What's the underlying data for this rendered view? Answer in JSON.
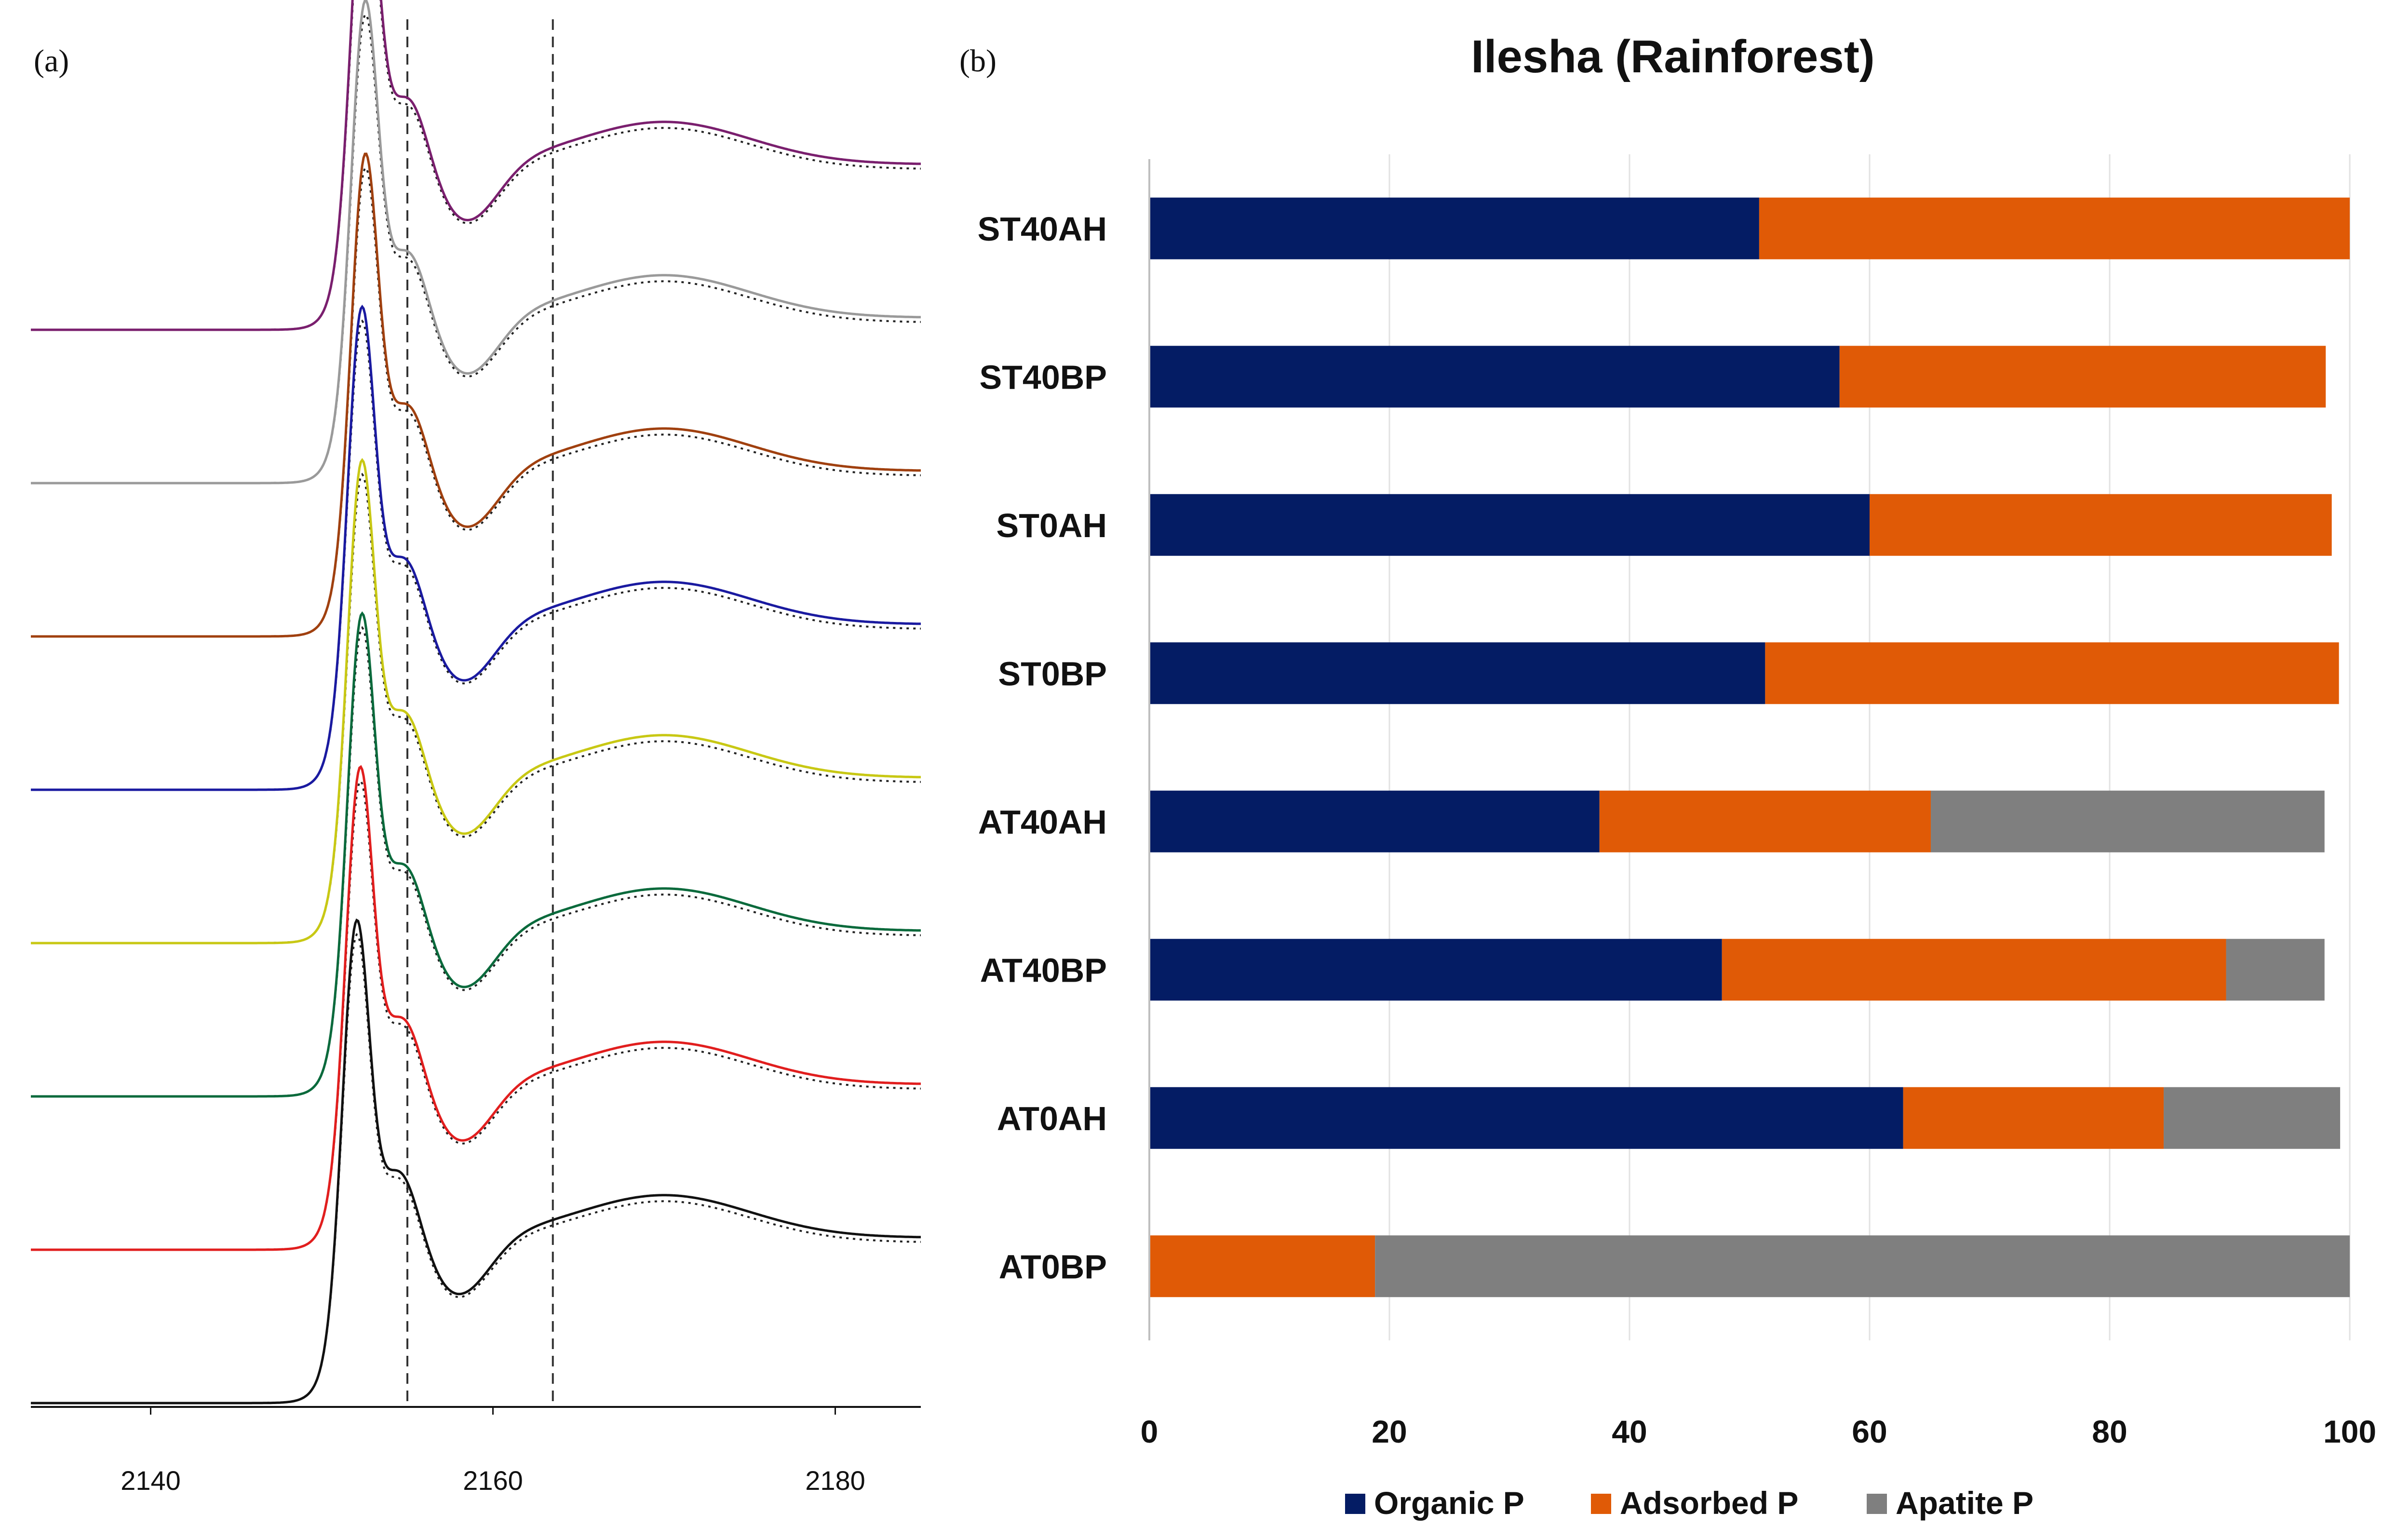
{
  "chart_data": [
    {
      "panel": "a",
      "type": "line",
      "panel_label": "(a)",
      "x_ticks": [
        "2140",
        "2160",
        "2180"
      ],
      "xlim": [
        2133,
        2185
      ],
      "reference_lines_x": [
        2155,
        2163.5
      ],
      "fit_style": "dotted",
      "series": [
        {
          "color": "#7a1f6e",
          "peak_x": 2152.5,
          "post_edge": 0.78
        },
        {
          "color": "#9a9a9a",
          "peak_x": 2152.5,
          "post_edge": 0.78
        },
        {
          "color": "#a0400f",
          "peak_x": 2152.5,
          "post_edge": 0.78
        },
        {
          "color": "#1a1aa0",
          "peak_x": 2152.3,
          "post_edge": 0.78
        },
        {
          "color": "#c8c814",
          "peak_x": 2152.3,
          "post_edge": 0.78
        },
        {
          "color": "#0a6a3c",
          "peak_x": 2152.3,
          "post_edge": 0.78
        },
        {
          "color": "#e11e1e",
          "peak_x": 2152.2,
          "post_edge": 0.78
        },
        {
          "color": "#111111",
          "peak_x": 2152.0,
          "post_edge": 0.78
        }
      ]
    },
    {
      "panel": "b",
      "type": "bar",
      "orientation": "horizontal",
      "stacked": true,
      "panel_label": "(b)",
      "title": "Ilesha (Rainforest)",
      "categories": [
        "ST40AH",
        "ST40BP",
        "ST0AH",
        "ST0BP",
        "AT40AH",
        "AT40BP",
        "AT0AH",
        "AT0BP"
      ],
      "series": [
        {
          "name": "Organic P",
          "color": "#041c64",
          "values": [
            50.8,
            57.5,
            60.0,
            51.3,
            37.5,
            47.7,
            62.8,
            0
          ]
        },
        {
          "name": "Adsorbed P",
          "color": "#e05a06",
          "values": [
            49.2,
            40.5,
            38.5,
            47.8,
            27.6,
            42.0,
            21.7,
            18.8
          ]
        },
        {
          "name": "Apatite P",
          "color": "#7f7f7f",
          "values": [
            0,
            0,
            0,
            0,
            32.8,
            8.2,
            14.7,
            81.2
          ]
        }
      ],
      "x_ticks": [
        "0",
        "20",
        "40",
        "60",
        "80",
        "100"
      ],
      "xlim": [
        0,
        100
      ],
      "grid": true,
      "legend_position": "bottom"
    }
  ]
}
